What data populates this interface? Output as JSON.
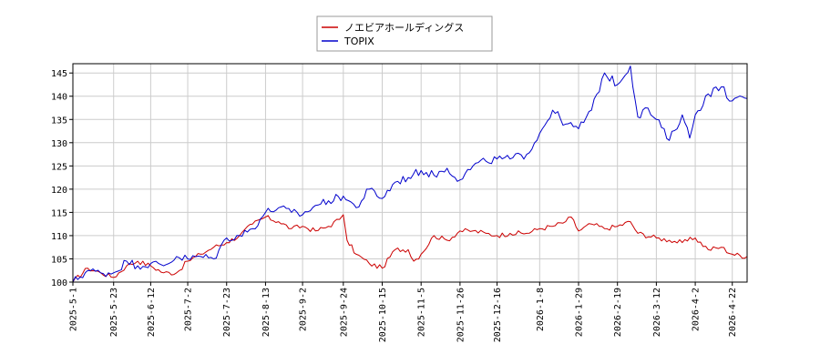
{
  "chart_data": {
    "type": "line",
    "title": "",
    "xlabel": "",
    "ylabel": "",
    "ylim": [
      100,
      147
    ],
    "yticks": [
      100,
      105,
      110,
      115,
      120,
      125,
      130,
      135,
      140,
      145
    ],
    "x_range": [
      "2025-05-01",
      "2026-04-30"
    ],
    "xticks": [
      "2025-5-1",
      "2025-5-23",
      "2025-6-12",
      "2025-7-2",
      "2025-7-23",
      "2025-8-13",
      "2025-9-2",
      "2025-9-24",
      "2025-10-15",
      "2025-11-5",
      "2025-11-26",
      "2025-12-16",
      "2026-1-8",
      "2026-1-29",
      "2026-2-19",
      "2026-3-12",
      "2026-4-2",
      "2026-4-22"
    ],
    "grid": true,
    "legend_position": "top-center",
    "series": [
      {
        "name": "ノエビアホールディングス",
        "color": "#cc0000",
        "points": [
          [
            "2025-05-01",
            100
          ],
          [
            "2025-05-09",
            103
          ],
          [
            "2025-05-16",
            102
          ],
          [
            "2025-05-23",
            101
          ],
          [
            "2025-05-30",
            103.5
          ],
          [
            "2025-06-05",
            104.5
          ],
          [
            "2025-06-12",
            103.5
          ],
          [
            "2025-06-19",
            102
          ],
          [
            "2025-06-26",
            102
          ],
          [
            "2025-07-02",
            104.5
          ],
          [
            "2025-07-09",
            106
          ],
          [
            "2025-07-16",
            107.5
          ],
          [
            "2025-07-23",
            108.5
          ],
          [
            "2025-07-30",
            110
          ],
          [
            "2025-08-06",
            112.5
          ],
          [
            "2025-08-13",
            114
          ],
          [
            "2025-08-20",
            113
          ],
          [
            "2025-08-27",
            111.5
          ],
          [
            "2025-09-02",
            112
          ],
          [
            "2025-09-09",
            111
          ],
          [
            "2025-09-16",
            112
          ],
          [
            "2025-09-22",
            113.5
          ],
          [
            "2025-09-24",
            114.5
          ],
          [
            "2025-09-26",
            109
          ],
          [
            "2025-10-01",
            106
          ],
          [
            "2025-10-08",
            104
          ],
          [
            "2025-10-15",
            103
          ],
          [
            "2025-10-22",
            107
          ],
          [
            "2025-10-29",
            107
          ],
          [
            "2025-11-01",
            104.5
          ],
          [
            "2025-11-05",
            106
          ],
          [
            "2025-11-12",
            110
          ],
          [
            "2025-11-19",
            109
          ],
          [
            "2025-11-26",
            111
          ],
          [
            "2025-12-03",
            111
          ],
          [
            "2025-12-10",
            110.5
          ],
          [
            "2025-12-16",
            110
          ],
          [
            "2025-12-23",
            110.5
          ],
          [
            "2026-01-01",
            110.5
          ],
          [
            "2026-01-08",
            111.5
          ],
          [
            "2026-01-15",
            112
          ],
          [
            "2026-01-22",
            113
          ],
          [
            "2026-01-25",
            114
          ],
          [
            "2026-01-29",
            111
          ],
          [
            "2026-02-05",
            112.5
          ],
          [
            "2026-02-12",
            111.5
          ],
          [
            "2026-02-19",
            112
          ],
          [
            "2026-02-26",
            113
          ],
          [
            "2026-03-02",
            110.5
          ],
          [
            "2026-03-12",
            109.5
          ],
          [
            "2026-03-19",
            109
          ],
          [
            "2026-03-26",
            108.5
          ],
          [
            "2026-04-02",
            109.5
          ],
          [
            "2026-04-09",
            107
          ],
          [
            "2026-04-16",
            107.5
          ],
          [
            "2026-04-22",
            106
          ],
          [
            "2026-04-30",
            105.5
          ]
        ]
      },
      {
        "name": "TOPIX",
        "color": "#0000cc",
        "points": [
          [
            "2025-05-01",
            100
          ],
          [
            "2025-05-09",
            102.5
          ],
          [
            "2025-05-16",
            102
          ],
          [
            "2025-05-23",
            102
          ],
          [
            "2025-05-30",
            104.5
          ],
          [
            "2025-06-05",
            103.5
          ],
          [
            "2025-06-12",
            104
          ],
          [
            "2025-06-19",
            103.5
          ],
          [
            "2025-06-26",
            105.5
          ],
          [
            "2025-07-02",
            105
          ],
          [
            "2025-07-09",
            105.5
          ],
          [
            "2025-07-16",
            105
          ],
          [
            "2025-07-23",
            109.5
          ],
          [
            "2025-07-30",
            110
          ],
          [
            "2025-08-06",
            111.5
          ],
          [
            "2025-08-13",
            115
          ],
          [
            "2025-08-20",
            116
          ],
          [
            "2025-08-27",
            115
          ],
          [
            "2025-09-02",
            114.5
          ],
          [
            "2025-09-09",
            116.5
          ],
          [
            "2025-09-16",
            117.5
          ],
          [
            "2025-09-24",
            118.5
          ],
          [
            "2025-10-01",
            116
          ],
          [
            "2025-10-08",
            120
          ],
          [
            "2025-10-15",
            118
          ],
          [
            "2025-10-22",
            121.5
          ],
          [
            "2025-10-29",
            122.5
          ],
          [
            "2025-11-05",
            124
          ],
          [
            "2025-11-12",
            123
          ],
          [
            "2025-11-19",
            124.5
          ],
          [
            "2025-11-26",
            122
          ],
          [
            "2025-12-03",
            125
          ],
          [
            "2025-12-10",
            126
          ],
          [
            "2025-12-16",
            126.5
          ],
          [
            "2025-12-23",
            126.5
          ],
          [
            "2026-01-01",
            127.5
          ],
          [
            "2026-01-08",
            132
          ],
          [
            "2026-01-15",
            137
          ],
          [
            "2026-01-22",
            134
          ],
          [
            "2026-01-29",
            133
          ],
          [
            "2026-02-05",
            137
          ],
          [
            "2026-02-12",
            145
          ],
          [
            "2026-02-19",
            142.5
          ],
          [
            "2026-02-26",
            146.5
          ],
          [
            "2026-03-02",
            135.5
          ],
          [
            "2026-03-06",
            137.5
          ],
          [
            "2026-03-12",
            135
          ],
          [
            "2026-03-19",
            130.5
          ],
          [
            "2026-03-26",
            136
          ],
          [
            "2026-03-30",
            131
          ],
          [
            "2026-04-02",
            136
          ],
          [
            "2026-04-09",
            140.5
          ],
          [
            "2026-04-16",
            142
          ],
          [
            "2026-04-22",
            139
          ],
          [
            "2026-04-30",
            139.5
          ]
        ]
      }
    ]
  }
}
